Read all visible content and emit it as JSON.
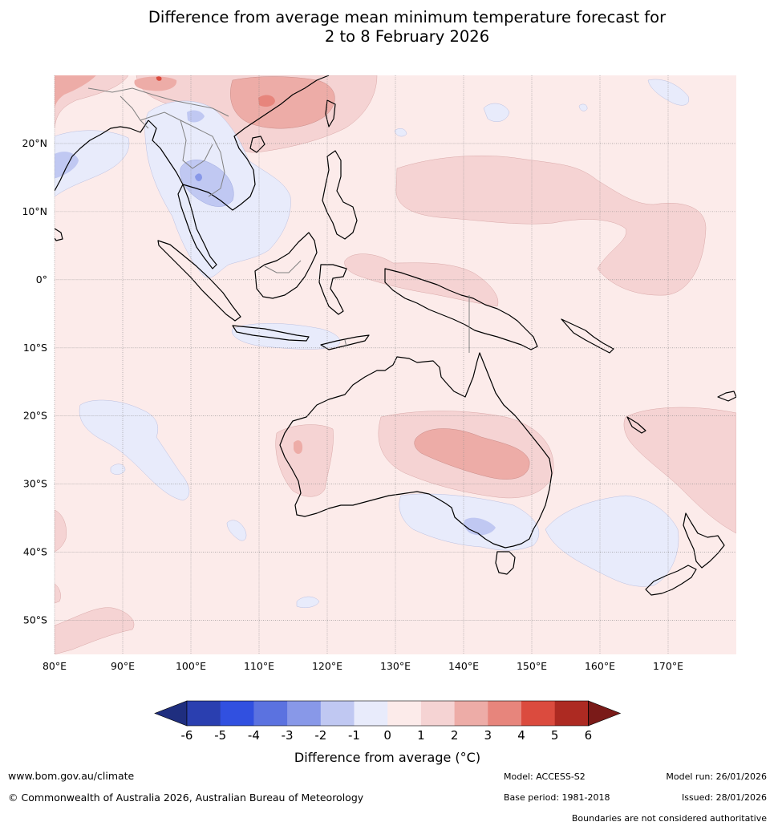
{
  "title": {
    "line1": "Difference from average mean minimum temperature forecast for",
    "line2": "2 to 8 February 2026"
  },
  "axes": {
    "lat_labels": [
      "20°N",
      "10°N",
      "0°",
      "10°S",
      "20°S",
      "30°S",
      "40°S",
      "50°S"
    ],
    "lat_values": [
      20,
      10,
      0,
      -10,
      -20,
      -30,
      -40,
      -50
    ],
    "lon_labels": [
      "80°E",
      "90°E",
      "100°E",
      "110°E",
      "120°E",
      "130°E",
      "140°E",
      "150°E",
      "160°E",
      "170°E"
    ],
    "lon_values": [
      80,
      90,
      100,
      110,
      120,
      130,
      140,
      150,
      160,
      170
    ],
    "lon_range": [
      80,
      180
    ],
    "lat_range": [
      -55,
      30
    ]
  },
  "colorbar": {
    "ticks": [
      "-6",
      "-5",
      "-4",
      "-3",
      "-2",
      "-1",
      "0",
      "1",
      "2",
      "3",
      "4",
      "5",
      "6"
    ],
    "colors": [
      "#1f2e7f",
      "#2a3fb0",
      "#3150e0",
      "#5b72e0",
      "#8898e8",
      "#c0c8f2",
      "#e8ebfb",
      "#fcebea",
      "#f5d3d3",
      "#edaca7",
      "#e7857c",
      "#db4b3e",
      "#ad2a22",
      "#7a1a18"
    ],
    "label": "Difference from average (°C)"
  },
  "footer": {
    "website": "www.bom.gov.au/climate",
    "copyright": "© Commonwealth of Australia 2026, Australian Bureau of Meteorology",
    "model": "Model: ACCESS-S2",
    "base_period": "Base period: 1981-2018",
    "model_run": "Model run: 26/01/2026",
    "issued": "Issued: 28/01/2026",
    "disclaimer": "Boundaries are not considered authoritative"
  }
}
